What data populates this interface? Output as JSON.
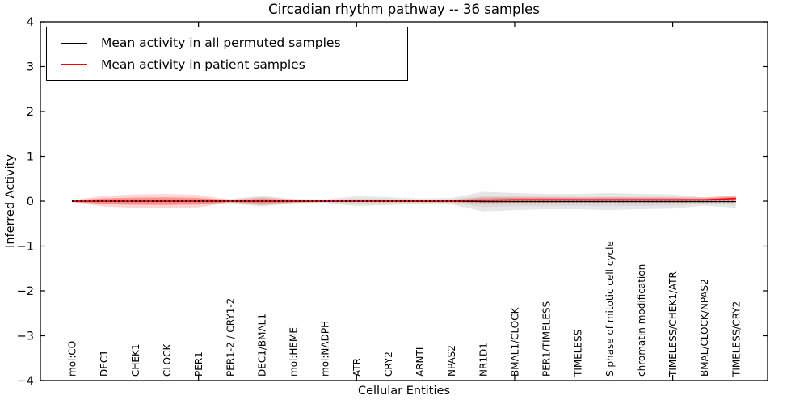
{
  "figure": {
    "title": "Circadian rhythm pathway -- 36 samples",
    "xlabel": "Cellular Entities",
    "ylabel": "Inferred Activity"
  },
  "legend": {
    "entries": [
      {
        "label": "Mean activity in all permuted samples",
        "color": "#000000"
      },
      {
        "label": "Mean activity in patient samples",
        "color": "#ff0000"
      }
    ]
  },
  "chart_data": {
    "type": "line",
    "title": "Circadian rhythm pathway -- 36 samples",
    "xlabel": "Cellular Entities",
    "ylabel": "Inferred Activity",
    "xlim": [
      0,
      23
    ],
    "ylim": [
      -4,
      4
    ],
    "grid": false,
    "legend_position": "upper left",
    "yticks": [
      {
        "value": 4,
        "label": "4"
      },
      {
        "value": 3,
        "label": "3"
      },
      {
        "value": 2,
        "label": "2"
      },
      {
        "value": 1,
        "label": "1"
      },
      {
        "value": 0,
        "label": "0"
      },
      {
        "value": -1,
        "label": "−1"
      },
      {
        "value": -2,
        "label": "−2"
      },
      {
        "value": -3,
        "label": "−3"
      },
      {
        "value": -4,
        "label": "−4"
      }
    ],
    "xticks_major": [
      5,
      10,
      15,
      20
    ],
    "categories": [
      "mol:CO",
      "DEC1",
      "CHEK1",
      "CLOCK",
      "PER1",
      "PER1-2 / CRY1-2",
      "DEC1/BMAL1",
      "mol:HEME",
      "mol:NADPH",
      "ATR",
      "CRY2",
      "ARNTL",
      "NPAS2",
      "NR1D1",
      "BMAL1/CLOCK",
      "PER1/TIMELESS",
      "TIMELESS",
      "S phase of mitotic cell cycle",
      "chromatin modification",
      "TIMELESS/CHEK1/ATR",
      "BMAL/CLOCK/NPAS2",
      "TIMELESS/CRY2"
    ],
    "series": [
      {
        "name": "Mean activity in all permuted samples",
        "color": "#000000",
        "line_style": "solid-with-dots",
        "band_color": "#8c8c8c",
        "values": [
          0,
          0,
          0,
          0,
          0,
          0,
          0,
          0,
          0,
          0,
          0,
          0,
          0,
          -0.01,
          -0.01,
          -0.01,
          -0.01,
          -0.01,
          -0.01,
          -0.01,
          -0.01,
          -0.01
        ],
        "band_upper": [
          0.03,
          0.05,
          0.06,
          0.06,
          0.055,
          0.05,
          0.12,
          0.05,
          0.04,
          0.11,
          0.09,
          0.06,
          0.07,
          0.21,
          0.18,
          0.16,
          0.16,
          0.18,
          0.16,
          0.15,
          0.08,
          0.13
        ],
        "band_lower": [
          -0.03,
          -0.05,
          -0.06,
          -0.06,
          -0.055,
          -0.05,
          -0.12,
          -0.05,
          -0.04,
          -0.11,
          -0.09,
          -0.06,
          -0.07,
          -0.23,
          -0.2,
          -0.18,
          -0.18,
          -0.2,
          -0.18,
          -0.17,
          -0.1,
          -0.15
        ]
      },
      {
        "name": "Mean activity in patient samples",
        "color": "#ff0000",
        "line_style": "solid",
        "band_color": "#ff3030",
        "values": [
          0,
          0,
          0,
          0,
          0,
          0,
          0,
          0,
          0,
          0,
          0,
          0,
          0,
          0.02,
          0.03,
          0.03,
          0.03,
          0.03,
          0.03,
          0.03,
          0.03,
          0.06
        ],
        "band_upper": [
          0.02,
          0.12,
          0.15,
          0.16,
          0.14,
          0.03,
          0.09,
          0.04,
          0.02,
          0.03,
          0.03,
          0.03,
          0.03,
          0.09,
          0.1,
          0.1,
          0.09,
          0.09,
          0.09,
          0.09,
          0.085,
          0.125
        ],
        "band_lower": [
          -0.02,
          -0.12,
          -0.15,
          -0.16,
          -0.14,
          -0.03,
          -0.09,
          -0.04,
          -0.02,
          -0.025,
          -0.025,
          -0.025,
          -0.03,
          -0.05,
          -0.04,
          -0.035,
          -0.03,
          -0.03,
          -0.03,
          -0.03,
          -0.025,
          -0.005
        ]
      }
    ]
  }
}
